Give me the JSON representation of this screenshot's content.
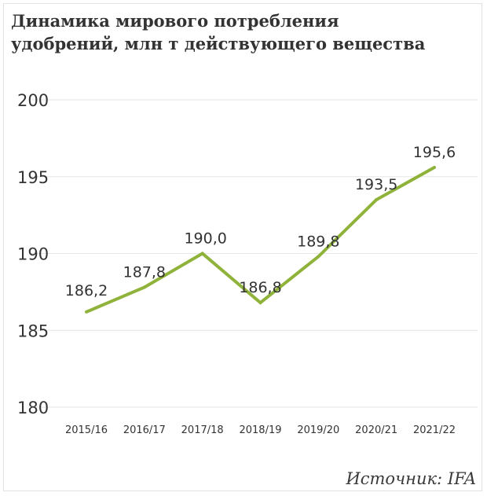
{
  "title": "Динамика мирового потребления удобрений, млн т действующего вещества",
  "source": "Источник: IFA",
  "colors": {
    "line": "#8fb33a",
    "text": "#333333",
    "grid": "#e6e6e6"
  },
  "chart_data": {
    "type": "line",
    "title": "Динамика мирового потребления удобрений, млн т действующего вещества",
    "categories": [
      "2015/16",
      "2016/17",
      "2017/18",
      "2018/19",
      "2019/20",
      "2020/21",
      "2021/22"
    ],
    "series": [
      {
        "values": [
          186.2,
          187.8,
          190.0,
          186.8,
          189.8,
          193.5,
          195.6
        ]
      }
    ],
    "data_labels": [
      "186,2",
      "187,8",
      "190,0",
      "186,8",
      "189,8",
      "193,5",
      "195,6"
    ],
    "ylim": [
      180,
      200
    ],
    "yticks": [
      180,
      185,
      190,
      195,
      200
    ],
    "grid": true,
    "legend": "none"
  }
}
